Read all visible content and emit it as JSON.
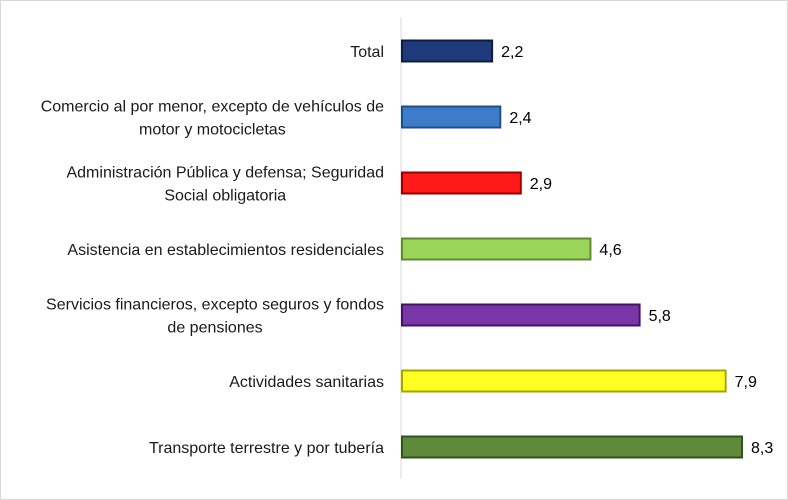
{
  "chart_data": {
    "type": "bar",
    "orientation": "horizontal",
    "categories": [
      [
        "Total"
      ],
      [
        "Comercio al por menor, excepto de vehículos de",
        "motor y motocicletas"
      ],
      [
        "Administración Pública y defensa; Seguridad",
        "Social obligatoria"
      ],
      [
        "Asistencia en establecimientos residenciales"
      ],
      [
        "Servicios financieros, excepto seguros y fondos",
        "de pensiones"
      ],
      [
        "Actividades sanitarias"
      ],
      [
        "Transporte terrestre y por tubería"
      ]
    ],
    "values": [
      2.2,
      2.4,
      2.9,
      4.6,
      5.8,
      7.9,
      8.3
    ],
    "value_labels": [
      "2,2",
      "2,4",
      "2,9",
      "4,6",
      "5,8",
      "7,9",
      "8,3"
    ],
    "bar_colors": [
      "#1f3a7a",
      "#3d7cc9",
      "#ff1a1a",
      "#9bd65a",
      "#7a36a8",
      "#ffff22",
      "#5e8a3a"
    ],
    "bar_edge_colors": [
      "#0d1c40",
      "#1f4f88",
      "#9a0000",
      "#5e8a2e",
      "#3e1560",
      "#a5a500",
      "#33521c"
    ],
    "xlim": [
      0,
      8.3
    ],
    "grid": false,
    "legend": "none"
  }
}
